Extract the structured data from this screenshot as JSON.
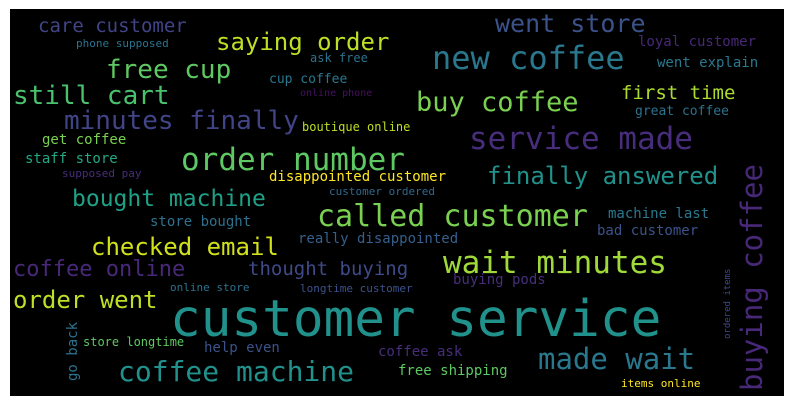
{
  "words": [
    {
      "text": "customer service",
      "color": "#21918c"
    },
    {
      "text": "went store",
      "color": "#3b528b"
    },
    {
      "text": "care customer",
      "color": "#414487"
    },
    {
      "text": "phone supposed",
      "color": "#2c728e"
    },
    {
      "text": "saying order",
      "color": "#bddf26"
    },
    {
      "text": "ask free",
      "color": "#2c728e"
    },
    {
      "text": "new coffee",
      "color": "#2a788e"
    },
    {
      "text": "loyal customer",
      "color": "#482878"
    },
    {
      "text": "free cup",
      "color": "#5ec962"
    },
    {
      "text": "cup coffee",
      "color": "#2a788e"
    },
    {
      "text": "went explain",
      "color": "#2a788e"
    },
    {
      "text": "online phone",
      "color": "#471164"
    },
    {
      "text": "still cart",
      "color": "#4ac16d"
    },
    {
      "text": "buy coffee",
      "color": "#7ad151"
    },
    {
      "text": "first time",
      "color": "#addc30"
    },
    {
      "text": "great coffee",
      "color": "#2c728e"
    },
    {
      "text": "minutes finally",
      "color": "#414487"
    },
    {
      "text": "boutique online",
      "color": "#bddf26"
    },
    {
      "text": "service made",
      "color": "#472d7b"
    },
    {
      "text": "get coffee",
      "color": "#7ad151"
    },
    {
      "text": "order number",
      "color": "#5ec962"
    },
    {
      "text": "staff store",
      "color": "#22a884"
    },
    {
      "text": "disappointed customer",
      "color": "#fde725"
    },
    {
      "text": "supposed pay",
      "color": "#472d7b"
    },
    {
      "text": "customer ordered",
      "color": "#31688e"
    },
    {
      "text": "finally answered",
      "color": "#21918c"
    },
    {
      "text": "bought machine",
      "color": "#1fa187"
    },
    {
      "text": "called customer",
      "color": "#7ad151"
    },
    {
      "text": "store bought",
      "color": "#2c728e"
    },
    {
      "text": "machine last",
      "color": "#2a788e"
    },
    {
      "text": "checked email",
      "color": "#d0e11c"
    },
    {
      "text": "really disappointed",
      "color": "#355f8d"
    },
    {
      "text": "bad customer",
      "color": "#3b528b"
    },
    {
      "text": "coffee online",
      "color": "#482878"
    },
    {
      "text": "thought buying",
      "color": "#3e4a89"
    },
    {
      "text": "wait minutes",
      "color": "#a0da39"
    },
    {
      "text": "order went",
      "color": "#bddf26"
    },
    {
      "text": "online store",
      "color": "#2c728e"
    },
    {
      "text": "longtime customer",
      "color": "#3b528b"
    },
    {
      "text": "buying pods",
      "color": "#472d7b"
    },
    {
      "text": "buying coffee",
      "color": "#482878"
    },
    {
      "text": "ordered items",
      "color": "#3e4a89"
    },
    {
      "text": "go back",
      "color": "#2c728e"
    },
    {
      "text": "store longtime",
      "color": "#5ec962"
    },
    {
      "text": "help even",
      "color": "#3b528b"
    },
    {
      "text": "coffee ask",
      "color": "#472d7b"
    },
    {
      "text": "made wait",
      "color": "#2a788e"
    },
    {
      "text": "coffee machine",
      "color": "#21918c"
    },
    {
      "text": "free shipping",
      "color": "#5ec962"
    },
    {
      "text": "items online",
      "color": "#fde725"
    }
  ]
}
